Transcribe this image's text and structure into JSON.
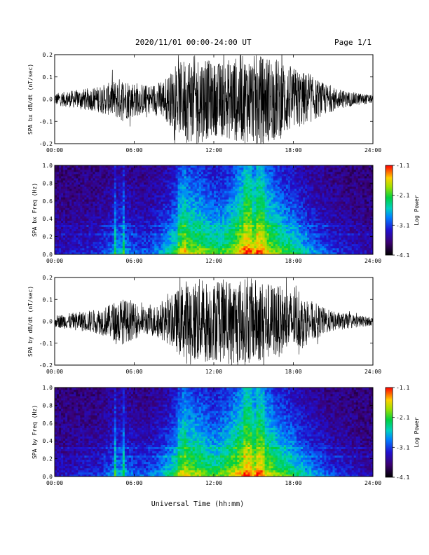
{
  "header": {
    "date_range": "2020/11/01  00:00-24:00 UT",
    "page": "Page 1/1"
  },
  "xlabel": "Universal Time (hh:mm)",
  "chart_data": [
    {
      "type": "line",
      "ylabel": "SPA bx dB/dt (nT/sec)",
      "xlim": [
        0,
        24
      ],
      "ylim": [
        -0.2,
        0.2
      ],
      "x_ticks": [
        "00:00",
        "06:00",
        "12:00",
        "18:00",
        "24:00"
      ],
      "y_ticks": [
        "0.2",
        "0.1",
        "0.0",
        "-0.1",
        "-0.2"
      ],
      "envelope": {
        "hours": [
          0,
          1,
          2,
          3,
          4,
          5,
          6,
          7,
          8,
          9,
          10,
          11,
          12,
          13,
          14,
          15,
          16,
          17,
          18,
          19,
          20,
          21,
          22,
          23,
          24
        ],
        "amplitude": [
          0.03,
          0.04,
          0.05,
          0.06,
          0.08,
          0.11,
          0.09,
          0.07,
          0.09,
          0.15,
          0.22,
          0.22,
          0.18,
          0.2,
          0.22,
          0.22,
          0.22,
          0.2,
          0.16,
          0.13,
          0.09,
          0.06,
          0.04,
          0.03,
          0.02
        ]
      }
    },
    {
      "type": "heatmap",
      "ylabel": "SPA bx Freq (Hz)",
      "xlim": [
        0,
        24
      ],
      "ylim": [
        0.0,
        1.0
      ],
      "x_ticks": [
        "00:00",
        "06:00",
        "12:00",
        "18:00",
        "24:00"
      ],
      "y_ticks": [
        "1.0",
        "0.8",
        "0.6",
        "0.4",
        "0.2",
        "0.0"
      ],
      "colorbar": {
        "label": "Log Power",
        "range": [
          -4.1,
          -1.1
        ],
        "ticks": [
          "-1.1",
          "-2.1",
          "-3.1",
          "-4.1"
        ]
      },
      "activity": {
        "hours": [
          0,
          1,
          2,
          3,
          4,
          5,
          6,
          7,
          8,
          9,
          10,
          11,
          12,
          13,
          14,
          15,
          16,
          17,
          18,
          19,
          20,
          21,
          22,
          23,
          24
        ],
        "level": [
          0.15,
          0.15,
          0.2,
          0.2,
          0.3,
          0.45,
          0.3,
          0.3,
          0.4,
          0.6,
          0.8,
          0.75,
          0.65,
          0.7,
          0.9,
          0.9,
          0.85,
          0.7,
          0.6,
          0.45,
          0.35,
          0.25,
          0.2,
          0.15,
          0.1
        ]
      }
    },
    {
      "type": "line",
      "ylabel": "SPA by dB/dt (nT/sec)",
      "xlim": [
        0,
        24
      ],
      "ylim": [
        -0.2,
        0.2
      ],
      "x_ticks": [
        "00:00",
        "06:00",
        "12:00",
        "18:00",
        "24:00"
      ],
      "y_ticks": [
        "0.2",
        "0.1",
        "0.0",
        "-0.1",
        "-0.2"
      ],
      "envelope": {
        "hours": [
          0,
          1,
          2,
          3,
          4,
          5,
          6,
          7,
          8,
          9,
          10,
          11,
          12,
          13,
          14,
          15,
          16,
          17,
          18,
          19,
          20,
          21,
          22,
          23,
          24
        ],
        "amplitude": [
          0.03,
          0.04,
          0.05,
          0.06,
          0.08,
          0.12,
          0.09,
          0.07,
          0.09,
          0.14,
          0.22,
          0.22,
          0.2,
          0.22,
          0.22,
          0.22,
          0.2,
          0.18,
          0.15,
          0.12,
          0.08,
          0.05,
          0.04,
          0.03,
          0.02
        ]
      }
    },
    {
      "type": "heatmap",
      "ylabel": "SPA by Freq (Hz)",
      "xlim": [
        0,
        24
      ],
      "ylim": [
        0.0,
        1.0
      ],
      "x_ticks": [
        "00:00",
        "06:00",
        "12:00",
        "18:00",
        "24:00"
      ],
      "y_ticks": [
        "1.0",
        "0.8",
        "0.6",
        "0.4",
        "0.2",
        "0.0"
      ],
      "colorbar": {
        "label": "Log Power",
        "range": [
          -4.1,
          -1.1
        ],
        "ticks": [
          "-1.1",
          "-2.1",
          "-3.1",
          "-4.1"
        ]
      },
      "activity": {
        "hours": [
          0,
          1,
          2,
          3,
          4,
          5,
          6,
          7,
          8,
          9,
          10,
          11,
          12,
          13,
          14,
          15,
          16,
          17,
          18,
          19,
          20,
          21,
          22,
          23,
          24
        ],
        "level": [
          0.15,
          0.15,
          0.2,
          0.2,
          0.3,
          0.45,
          0.3,
          0.3,
          0.4,
          0.6,
          0.8,
          0.75,
          0.65,
          0.75,
          0.9,
          0.9,
          0.85,
          0.7,
          0.6,
          0.45,
          0.35,
          0.25,
          0.2,
          0.15,
          0.1
        ]
      }
    }
  ]
}
